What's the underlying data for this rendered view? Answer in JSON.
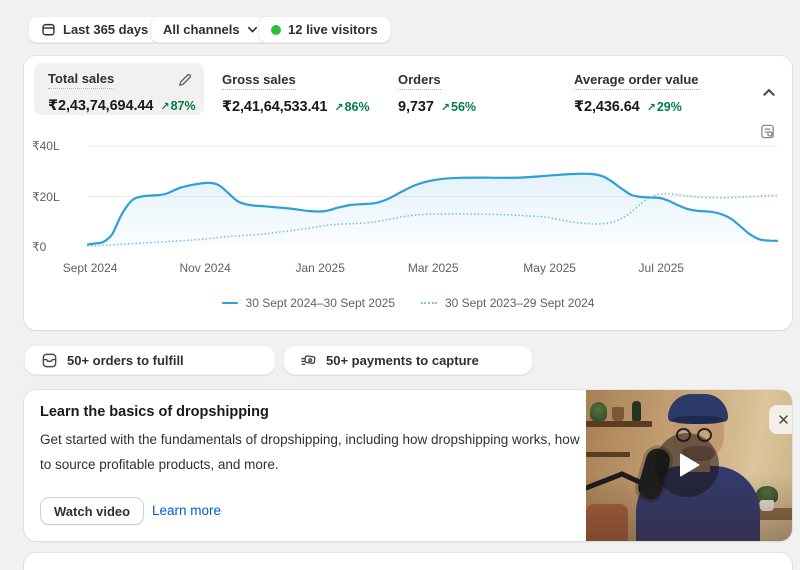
{
  "topbar": {
    "date_range": "Last 365 days",
    "channels": "All channels",
    "live_visitors": "12 live visitors",
    "live_dot_color": "#2ebd3a"
  },
  "metrics": {
    "items": [
      {
        "label": "Total sales",
        "value": "₹2,43,74,694.44",
        "delta": "87%",
        "arrow": "↗",
        "selected": true
      },
      {
        "label": "Gross sales",
        "value": "₹2,41,64,533.41",
        "delta": "86%",
        "arrow": "↗",
        "selected": false
      },
      {
        "label": "Orders",
        "value": "9,737",
        "delta": "56%",
        "arrow": "↗",
        "selected": false
      },
      {
        "label": "Average order value",
        "value": "₹2,436.64",
        "delta": "29%",
        "arrow": "↗",
        "selected": false
      }
    ],
    "delta_color": "#047b48"
  },
  "chart_data": {
    "type": "line",
    "unit": "lakh INR (L)",
    "ylim": [
      0,
      40
    ],
    "grid": true,
    "legend_position": "bottom-center",
    "y_ticks": [
      {
        "label": "₹40L",
        "value": 40
      },
      {
        "label": "₹20L",
        "value": 20
      },
      {
        "label": "₹0",
        "value": 0
      }
    ],
    "x_ticks": [
      {
        "label": "Sept 2024",
        "pos": 0.003
      },
      {
        "label": "Nov 2024",
        "pos": 0.17
      },
      {
        "label": "Jan 2025",
        "pos": 0.337
      },
      {
        "label": "Mar 2025",
        "pos": 0.501
      },
      {
        "label": "May 2025",
        "pos": 0.67
      },
      {
        "label": "Jul 2025",
        "pos": 0.832
      }
    ],
    "series": [
      {
        "name": "30 Sept 2024–30 Sept 2025",
        "style": "solid",
        "color": "#2f9fd8",
        "fill": true,
        "points": [
          [
            0,
            1
          ],
          [
            0.01,
            1.4
          ],
          [
            0.022,
            2
          ],
          [
            0.035,
            5
          ],
          [
            0.049,
            13
          ],
          [
            0.064,
            18.5
          ],
          [
            0.078,
            20
          ],
          [
            0.093,
            20.4
          ],
          [
            0.112,
            21
          ],
          [
            0.134,
            23.5
          ],
          [
            0.155,
            24.8
          ],
          [
            0.174,
            25.4
          ],
          [
            0.189,
            24.6
          ],
          [
            0.203,
            21.5
          ],
          [
            0.218,
            18
          ],
          [
            0.235,
            16.6
          ],
          [
            0.257,
            16.1
          ],
          [
            0.282,
            15.5
          ],
          [
            0.3,
            15
          ],
          [
            0.322,
            14.2
          ],
          [
            0.344,
            14.2
          ],
          [
            0.363,
            15.6
          ],
          [
            0.38,
            16.6
          ],
          [
            0.399,
            17
          ],
          [
            0.417,
            17.4
          ],
          [
            0.435,
            19
          ],
          [
            0.456,
            22
          ],
          [
            0.475,
            24.5
          ],
          [
            0.493,
            26
          ],
          [
            0.515,
            27
          ],
          [
            0.54,
            27.4
          ],
          [
            0.569,
            27.5
          ],
          [
            0.598,
            27.4
          ],
          [
            0.627,
            27.5
          ],
          [
            0.656,
            28
          ],
          [
            0.685,
            28.6
          ],
          [
            0.711,
            29
          ],
          [
            0.731,
            28.9
          ],
          [
            0.747,
            28
          ],
          [
            0.76,
            26
          ],
          [
            0.775,
            23
          ],
          [
            0.789,
            20.6
          ],
          [
            0.804,
            19.8
          ],
          [
            0.818,
            19.6
          ],
          [
            0.83,
            19.4
          ],
          [
            0.842,
            18.4
          ],
          [
            0.856,
            16.6
          ],
          [
            0.871,
            15
          ],
          [
            0.885,
            14.3
          ],
          [
            0.903,
            14
          ],
          [
            0.917,
            13.2
          ],
          [
            0.932,
            11.4
          ],
          [
            0.946,
            8.4
          ],
          [
            0.961,
            5
          ],
          [
            0.975,
            3
          ],
          [
            0.99,
            2.5
          ],
          [
            1,
            2.4
          ]
        ]
      },
      {
        "name": "30 Sept 2023–29 Sept 2024",
        "style": "dotted",
        "color": "#85c4e8",
        "fill": false,
        "points": [
          [
            0,
            0.4
          ],
          [
            0.032,
            0.8
          ],
          [
            0.075,
            1.5
          ],
          [
            0.119,
            2.2
          ],
          [
            0.163,
            3
          ],
          [
            0.206,
            4.2
          ],
          [
            0.25,
            5
          ],
          [
            0.286,
            6.2
          ],
          [
            0.322,
            7.5
          ],
          [
            0.351,
            8.8
          ],
          [
            0.38,
            9.2
          ],
          [
            0.409,
            9.7
          ],
          [
            0.438,
            11
          ],
          [
            0.467,
            12.4
          ],
          [
            0.496,
            13
          ],
          [
            0.533,
            13.1
          ],
          [
            0.569,
            13
          ],
          [
            0.605,
            12.8
          ],
          [
            0.634,
            12.4
          ],
          [
            0.663,
            11.9
          ],
          [
            0.685,
            10.8
          ],
          [
            0.707,
            9.8
          ],
          [
            0.729,
            9.2
          ],
          [
            0.75,
            9.3
          ],
          [
            0.769,
            10.6
          ],
          [
            0.787,
            13.5
          ],
          [
            0.804,
            17.5
          ],
          [
            0.818,
            20
          ],
          [
            0.833,
            21
          ],
          [
            0.852,
            20.8
          ],
          [
            0.874,
            20.1
          ],
          [
            0.895,
            19.6
          ],
          [
            0.924,
            19.5
          ],
          [
            0.953,
            19.8
          ],
          [
            0.982,
            20.3
          ],
          [
            1,
            20.4
          ]
        ]
      }
    ]
  },
  "actions": {
    "items": [
      {
        "label": "50+ orders to fulfill",
        "icon": "orders-inbox-icon"
      },
      {
        "label": "50+ payments to capture",
        "icon": "payments-icon"
      }
    ]
  },
  "learn_card": {
    "title": "Learn the basics of dropshipping",
    "body": "Get started with the fundamentals of dropshipping, including how dropshipping works, how to source profitable products, and more.",
    "watch_button": "Watch video",
    "learn_link": "Learn more",
    "close_glyph": "✕"
  },
  "colors": {
    "page_bg": "#f1f1f1",
    "card_bg": "#ffffff",
    "text_primary": "#303030",
    "text_secondary": "#616161",
    "success_green": "#047b48",
    "link_blue": "#005bd3",
    "chart_blue_solid": "#2f9fd8",
    "chart_blue_dotted": "#85c4e8"
  }
}
